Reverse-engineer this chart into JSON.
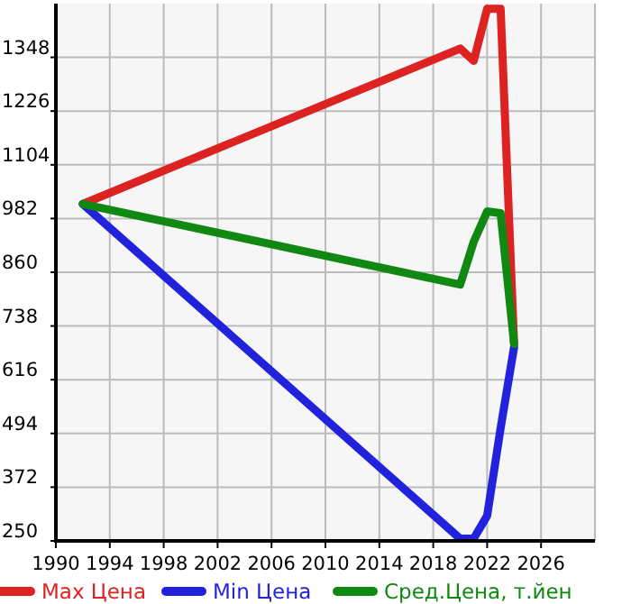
{
  "chart_data": {
    "type": "line",
    "x": [
      1992,
      2020,
      2021,
      2022,
      2023,
      2024
    ],
    "series": [
      {
        "name": "Max Цена",
        "color": "#dd2222",
        "values": [
          1015,
          1368,
          1340,
          1458,
          1458,
          697
        ]
      },
      {
        "name": "Min Цена",
        "color": "#2222dd",
        "values": [
          1015,
          255,
          255,
          307,
          506,
          690
        ]
      },
      {
        "name": "Сред.Цена, т.йен",
        "color": "#118811",
        "values": [
          1015,
          832,
          929,
          998,
          994,
          697
        ]
      }
    ],
    "xlim": [
      1990,
      2030
    ],
    "xticks": [
      1990,
      1994,
      1998,
      2002,
      2006,
      2010,
      2014,
      2018,
      2022,
      2026
    ],
    "ylim": [
      250,
      1470
    ],
    "yticks": [
      250,
      372,
      494,
      616,
      738,
      860,
      982,
      1104,
      1226,
      1348
    ],
    "grid": true,
    "legend": "bottom",
    "line_style": "solid",
    "marker": "none"
  }
}
